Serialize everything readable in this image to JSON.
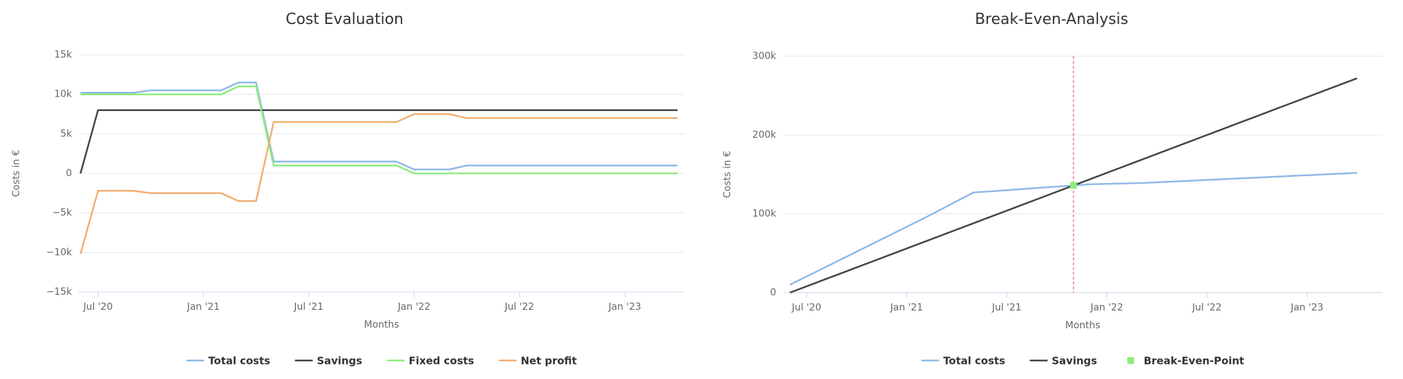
{
  "chart_data": [
    {
      "type": "line",
      "title": "Cost Evaluation",
      "x_label": "Months",
      "y_label": "Costs in €",
      "categories": [
        null,
        "Jul '20",
        null,
        null,
        null,
        null,
        null,
        "Jan '21",
        null,
        null,
        null,
        null,
        null,
        "Jul '21",
        null,
        null,
        null,
        null,
        null,
        "Jan '22",
        null,
        null,
        null,
        null,
        null,
        "Jul '22",
        null,
        null,
        null,
        null,
        null,
        "Jan '23",
        null,
        null,
        null
      ],
      "series": [
        {
          "name": "Total costs",
          "color": "#8fb9e6",
          "values": [
            10200,
            10200,
            10200,
            10200,
            10500,
            10500,
            10500,
            10500,
            10500,
            11500,
            11500,
            1500,
            1500,
            1500,
            1500,
            1500,
            1500,
            1500,
            1500,
            500,
            500,
            500,
            1000,
            1000,
            1000,
            1000,
            1000,
            1000,
            1000,
            1000,
            1000,
            1000,
            1000,
            1000,
            1000
          ]
        },
        {
          "name": "Savings",
          "color": "#434348",
          "values": [
            0,
            8000,
            8000,
            8000,
            8000,
            8000,
            8000,
            8000,
            8000,
            8000,
            8000,
            8000,
            8000,
            8000,
            8000,
            8000,
            8000,
            8000,
            8000,
            8000,
            8000,
            8000,
            8000,
            8000,
            8000,
            8000,
            8000,
            8000,
            8000,
            8000,
            8000,
            8000,
            8000,
            8000,
            8000
          ]
        },
        {
          "name": "Fixed costs",
          "color": "#90ed7d",
          "values": [
            10000,
            10000,
            10000,
            10000,
            10000,
            10000,
            10000,
            10000,
            10000,
            11000,
            11000,
            1000,
            1000,
            1000,
            1000,
            1000,
            1000,
            1000,
            1000,
            0,
            0,
            0,
            0,
            0,
            0,
            0,
            0,
            0,
            0,
            0,
            0,
            0,
            0,
            0,
            0
          ]
        },
        {
          "name": "Net profit",
          "color": "#f2ae72",
          "values": [
            -10200,
            -2200,
            -2200,
            -2200,
            -2500,
            -2500,
            -2500,
            -2500,
            -2500,
            -3500,
            -3500,
            6500,
            6500,
            6500,
            6500,
            6500,
            6500,
            6500,
            6500,
            7500,
            7500,
            7500,
            7000,
            7000,
            7000,
            7000,
            7000,
            7000,
            7000,
            7000,
            7000,
            7000,
            7000,
            7000,
            7000
          ]
        }
      ],
      "ylim": [
        -15000,
        15000
      ],
      "yticks": [
        {
          "value": -15000,
          "label": "−15k"
        },
        {
          "value": -10000,
          "label": "−10k"
        },
        {
          "value": -5000,
          "label": "−5k"
        },
        0,
        {
          "value": 5000,
          "label": "5k"
        },
        {
          "value": 10000,
          "label": "10k"
        },
        {
          "value": 15000,
          "label": "15k"
        }
      ],
      "grid": true
    },
    {
      "type": "line",
      "title": "Break-Even-Analysis",
      "x_label": "Months",
      "y_label": "Costs in €",
      "categories": [
        null,
        "Jul '20",
        null,
        null,
        null,
        null,
        null,
        "Jan '21",
        null,
        null,
        null,
        null,
        null,
        "Jul '21",
        null,
        null,
        null,
        null,
        null,
        "Jan '22",
        null,
        null,
        null,
        null,
        null,
        "Jul '22",
        null,
        null,
        null,
        null,
        null,
        "Jan '23",
        null,
        null,
        null
      ],
      "series": [
        {
          "name": "Total costs",
          "color": "#8fb9e6",
          "values": [
            10000,
            20500,
            31000,
            41500,
            52000,
            62500,
            73000,
            83500,
            94000,
            105000,
            116000,
            127000,
            128500,
            130000,
            131500,
            133000,
            134500,
            136000,
            137500,
            138000,
            138500,
            139000,
            140000,
            141000,
            142000,
            143000,
            144000,
            145000,
            146000,
            147000,
            148000,
            149000,
            150000,
            151000,
            152000
          ]
        },
        {
          "name": "Savings",
          "color": "#434348",
          "values": [
            0,
            8000,
            16000,
            24000,
            32000,
            40000,
            48000,
            56000,
            64000,
            72000,
            80000,
            88000,
            96000,
            104000,
            112000,
            120000,
            128000,
            136000,
            144000,
            152000,
            160000,
            168000,
            176000,
            184000,
            192000,
            200000,
            208000,
            216000,
            224000,
            232000,
            240000,
            248000,
            256000,
            264000,
            272000
          ]
        },
        {
          "name": "Break-Even-Point",
          "color": "#90ed7d",
          "marker": "square",
          "values": [
            null,
            null,
            null,
            null,
            null,
            null,
            null,
            null,
            null,
            null,
            null,
            null,
            null,
            null,
            null,
            null,
            null,
            136000,
            null,
            null,
            null,
            null,
            null,
            null,
            null,
            null,
            null,
            null,
            null,
            null,
            null,
            null,
            null,
            null,
            null
          ]
        }
      ],
      "ylim": [
        0,
        300000
      ],
      "yticks": [
        0,
        {
          "value": 100000,
          "label": "100k"
        },
        {
          "value": 200000,
          "label": "200k"
        },
        {
          "value": 300000,
          "label": "300k"
        }
      ],
      "grid": true
    }
  ]
}
